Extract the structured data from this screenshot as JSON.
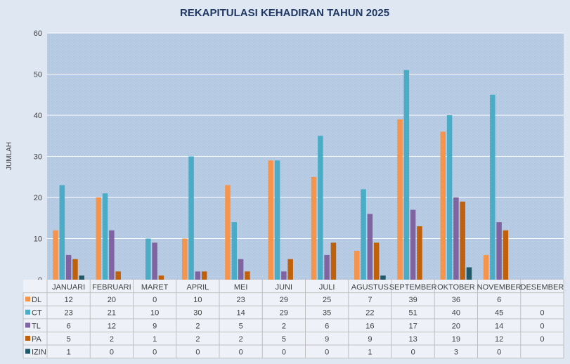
{
  "chart_data": {
    "type": "bar",
    "title": "REKAPITULASI KEHADIRAN TAHUN 2025",
    "xlabel": "",
    "ylabel": "JUMLAH",
    "ylim": [
      0,
      60
    ],
    "yticks": [
      0,
      10,
      20,
      30,
      40,
      50,
      60
    ],
    "grid": true,
    "legend": "data-table-left",
    "categories": [
      "JANUARI",
      "FEBRUARI",
      "MARET",
      "APRIL",
      "MEI",
      "JUNI",
      "JULI",
      "AGUSTUS",
      "SEPTEMBER",
      "OKTOBER",
      "NOVEMBER",
      "DESEMBER"
    ],
    "series": [
      {
        "name": "DL",
        "color": "#f5944a",
        "values": [
          12,
          20,
          0,
          10,
          23,
          29,
          25,
          7,
          39,
          36,
          6,
          null
        ]
      },
      {
        "name": "CT",
        "color": "#4bacc6",
        "values": [
          23,
          21,
          10,
          30,
          14,
          29,
          35,
          22,
          51,
          40,
          45,
          0
        ]
      },
      {
        "name": "TL",
        "color": "#8064a2",
        "values": [
          6,
          12,
          9,
          2,
          5,
          2,
          6,
          16,
          17,
          20,
          14,
          0
        ]
      },
      {
        "name": "PA",
        "color": "#c0600b",
        "values": [
          5,
          2,
          1,
          2,
          2,
          5,
          9,
          9,
          13,
          19,
          12,
          0
        ]
      },
      {
        "name": "IZIN",
        "color": "#215968",
        "values": [
          1,
          0,
          0,
          0,
          0,
          0,
          0,
          1,
          0,
          3,
          0,
          null
        ]
      }
    ]
  }
}
